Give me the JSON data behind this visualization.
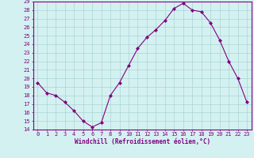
{
  "x": [
    0,
    1,
    2,
    3,
    4,
    5,
    6,
    7,
    8,
    9,
    10,
    11,
    12,
    13,
    14,
    15,
    16,
    17,
    18,
    19,
    20,
    21,
    22,
    23
  ],
  "y": [
    19.5,
    18.3,
    18.0,
    17.2,
    16.2,
    15.0,
    14.3,
    14.8,
    18.0,
    19.5,
    21.5,
    23.5,
    24.8,
    25.7,
    26.8,
    28.2,
    28.8,
    28.0,
    27.8,
    26.5,
    24.5,
    22.0,
    20.0,
    17.2
  ],
  "ylim": [
    14,
    29
  ],
  "yticks": [
    14,
    15,
    16,
    17,
    18,
    19,
    20,
    21,
    22,
    23,
    24,
    25,
    26,
    27,
    28,
    29
  ],
  "xticks": [
    0,
    1,
    2,
    3,
    4,
    5,
    6,
    7,
    8,
    9,
    10,
    11,
    12,
    13,
    14,
    15,
    16,
    17,
    18,
    19,
    20,
    21,
    22,
    23
  ],
  "xlabel": "Windchill (Refroidissement éolien,°C)",
  "line_color": "#800080",
  "marker": "D",
  "marker_size": 2.0,
  "bg_color": "#d4f1f1",
  "grid_color": "#aad4d4",
  "figsize": [
    3.2,
    2.0
  ],
  "dpi": 100
}
